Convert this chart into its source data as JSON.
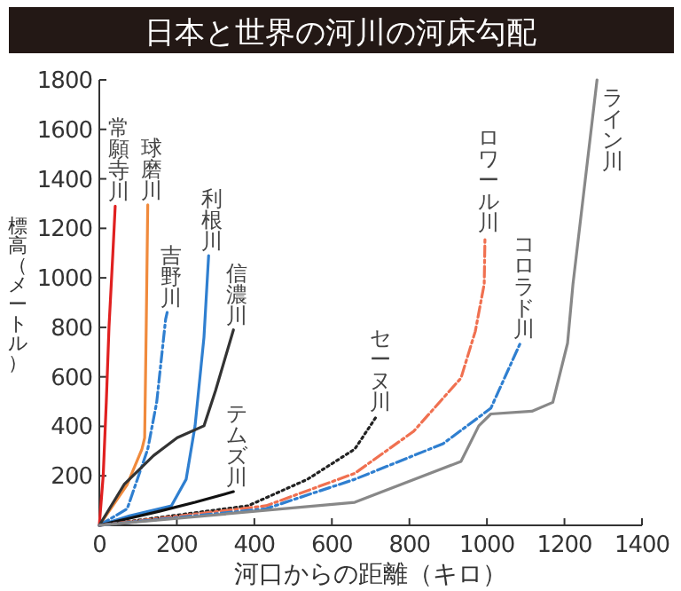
{
  "chart_data": {
    "type": "line",
    "title": "日本と世界の河川の河床勾配",
    "xlabel": "河口からの距離（キロ）",
    "ylabel": "標高（メートル）",
    "xlim": [
      0,
      1400
    ],
    "ylim": [
      0,
      1800
    ],
    "xticks": [
      0,
      200,
      400,
      600,
      800,
      1000,
      1200,
      1400
    ],
    "yticks": [
      200,
      400,
      600,
      800,
      1000,
      1200,
      1400,
      1600,
      1800
    ],
    "legend": false,
    "grid": false,
    "marker": "none",
    "series": [
      {
        "name": "常願寺川",
        "color": "#e02020",
        "line_style": "solid",
        "x": [
          0,
          10,
          18,
          25,
          35,
          41
        ],
        "values": [
          0,
          200,
          497,
          800,
          1100,
          1290
        ]
      },
      {
        "name": "球磨川",
        "color": "#f08a3c",
        "line_style": "solid",
        "x": [
          0,
          72,
          110,
          117,
          121,
          125
        ],
        "values": [
          0,
          165,
          308,
          354,
          800,
          1295
        ]
      },
      {
        "name": "吉野川",
        "color": "#2f7fd0",
        "line_style": "dashed",
        "x": [
          0,
          72,
          125,
          148,
          171,
          175
        ],
        "values": [
          0,
          67,
          308,
          497,
          832,
          860
        ]
      },
      {
        "name": "利根川",
        "color": "#2f7fd0",
        "line_style": "solid",
        "x": [
          0,
          78,
          186,
          224,
          247,
          270,
          282
        ],
        "values": [
          0,
          38,
          79,
          186,
          402,
          760,
          1090
        ]
      },
      {
        "name": "信濃川",
        "color": "#333333",
        "line_style": "solid",
        "x": [
          0,
          64,
          140,
          201,
          270,
          300,
          346
        ],
        "values": [
          0,
          165,
          282,
          354,
          402,
          545,
          790
        ]
      },
      {
        "name": "テムズ川",
        "color": "#111111",
        "line_style": "solid",
        "x": [
          0,
          155,
          247,
          346
        ],
        "values": [
          0,
          57,
          93,
          136
        ]
      },
      {
        "name": "セーヌ川",
        "color": "#222222",
        "line_style": "dotted",
        "x": [
          0,
          384,
          537,
          659,
          715
        ],
        "values": [
          0,
          79,
          186,
          308,
          440
        ]
      },
      {
        "name": "ロワール川",
        "color": "#f07050",
        "line_style": "dashed",
        "x": [
          0,
          430,
          659,
          811,
          933,
          970,
          993,
          995
        ],
        "values": [
          0,
          79,
          210,
          380,
          595,
          784,
          975,
          1167
        ]
      },
      {
        "name": "コロラド川",
        "color": "#2f7fd0",
        "line_style": "dashed",
        "x": [
          0,
          430,
          659,
          887,
          1010,
          1086
        ],
        "values": [
          0,
          67,
          186,
          330,
          473,
          736
        ]
      },
      {
        "name": "ライン川",
        "color": "#888888",
        "line_style": "solid",
        "x": [
          0,
          659,
          933,
          979,
          1010,
          1116,
          1170,
          1208,
          1222,
          1284
        ],
        "values": [
          0,
          93,
          258,
          402,
          450,
          461,
          497,
          736,
          975,
          1800
        ]
      }
    ]
  }
}
